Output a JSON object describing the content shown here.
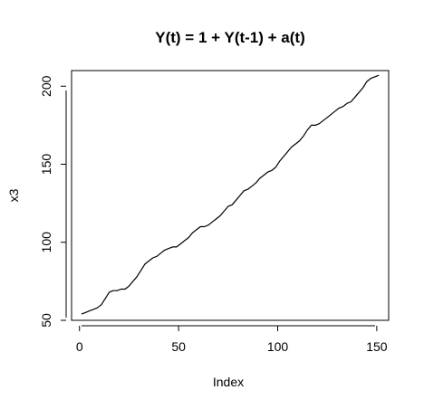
{
  "chart_data": {
    "type": "line",
    "title": "Y(t) = 1 + Y(t-1) + a(t)",
    "xlabel": "Index",
    "ylabel": "x3",
    "xlim": [
      -4,
      156
    ],
    "ylim": [
      50,
      210
    ],
    "xticks": [
      0,
      50,
      100,
      150
    ],
    "yticks": [
      50,
      100,
      150,
      200
    ],
    "grid": false,
    "legend": "none",
    "series": [
      {
        "color": "#000000",
        "x": [
          1,
          3,
          5,
          7,
          9,
          11,
          13,
          15,
          17,
          19,
          21,
          23,
          25,
          27,
          29,
          31,
          33,
          35,
          37,
          39,
          41,
          43,
          45,
          47,
          49,
          51,
          53,
          55,
          57,
          59,
          61,
          63,
          65,
          67,
          69,
          71,
          73,
          75,
          77,
          79,
          81,
          83,
          85,
          87,
          89,
          91,
          93,
          95,
          97,
          99,
          101,
          103,
          105,
          107,
          109,
          111,
          113,
          115,
          117,
          119,
          121,
          123,
          125,
          127,
          129,
          131,
          133,
          135,
          137,
          139,
          141,
          143,
          145,
          147,
          149,
          151
        ],
        "y": [
          54,
          55,
          56,
          57,
          58,
          60,
          64,
          68,
          69,
          69,
          70,
          70,
          72,
          75,
          78,
          82,
          86,
          88,
          90,
          91,
          93,
          95,
          96,
          97,
          97,
          99,
          101,
          103,
          106,
          108,
          110,
          110,
          111,
          113,
          115,
          117,
          120,
          123,
          124,
          127,
          130,
          133,
          134,
          136,
          138,
          141,
          143,
          145,
          146,
          148,
          152,
          155,
          158,
          161,
          163,
          165,
          168,
          172,
          175,
          175,
          176,
          178,
          180,
          182,
          184,
          186,
          187,
          189,
          190,
          193,
          196,
          199,
          203,
          205,
          206,
          207
        ]
      }
    ]
  }
}
